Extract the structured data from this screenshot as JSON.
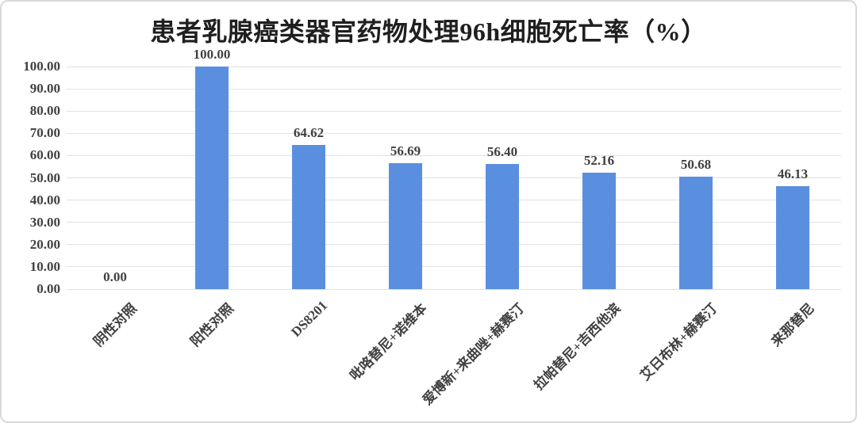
{
  "window": {
    "background_color": "#ffffff",
    "border_color": "#d9d9d9"
  },
  "chart_data": {
    "type": "bar",
    "title": "患者乳腺癌类器官药物处理96h细胞死亡率（%）",
    "categories": [
      "阴性对照",
      "阳性对照",
      "DS8201",
      "吡咯替尼+诺维本",
      "爱博新+来曲唑+赫赛汀",
      "拉帕替尼+吉西他滨",
      "艾日布林+赫赛汀",
      "来那替尼"
    ],
    "values": [
      0,
      100,
      64.62,
      56.69,
      56.4,
      52.16,
      50.68,
      46.13
    ],
    "data_labels": [
      "0.00",
      "100.00",
      "64.62",
      "56.69",
      "56.40",
      "52.16",
      "50.68",
      "46.13"
    ],
    "xlabel": "",
    "ylabel": "",
    "ylim": [
      0,
      100
    ],
    "y_tick_step": 10,
    "y_tick_labels": [
      "0.00",
      "10.00",
      "20.00",
      "30.00",
      "40.00",
      "50.00",
      "60.00",
      "70.00",
      "80.00",
      "90.00",
      "100.00"
    ],
    "grid": true,
    "legend_position": "none",
    "x_label_rotation_deg": -45,
    "bar_color": "#5a8fe0",
    "gridline_color": "#e2e2e2",
    "text_color": "#404040",
    "title_color": "#1f1f1f"
  }
}
